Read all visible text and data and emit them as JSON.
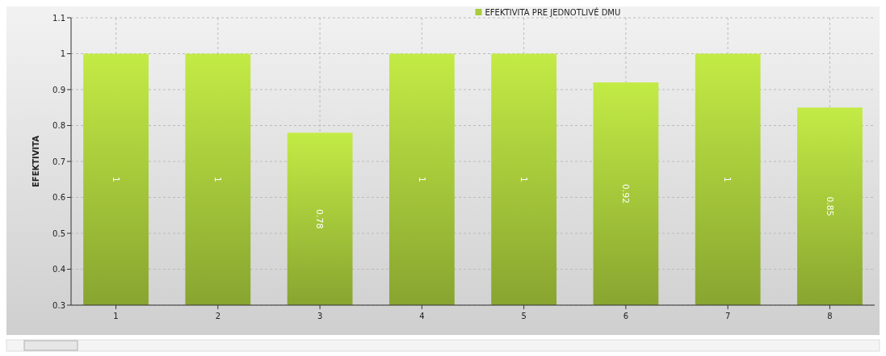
{
  "chart_data": {
    "type": "bar",
    "ylabel": "EFEKTIVITA",
    "categories": [
      "1",
      "2",
      "3",
      "4",
      "5",
      "6",
      "7",
      "8"
    ],
    "series": [
      {
        "name": "EFEKTIVITA PRE JEDNOTLIVÉ DMU",
        "color": "#a9cc3c",
        "values": [
          1,
          1,
          0.78,
          1,
          1,
          0.92,
          1,
          0.85
        ]
      }
    ],
    "ylim": [
      0.3,
      1.1
    ],
    "yticks": [
      0.3,
      0.4,
      0.5,
      0.6,
      0.7,
      0.8,
      0.9,
      1,
      1.1
    ],
    "grid": true,
    "legend": "top",
    "data_labels": true
  }
}
